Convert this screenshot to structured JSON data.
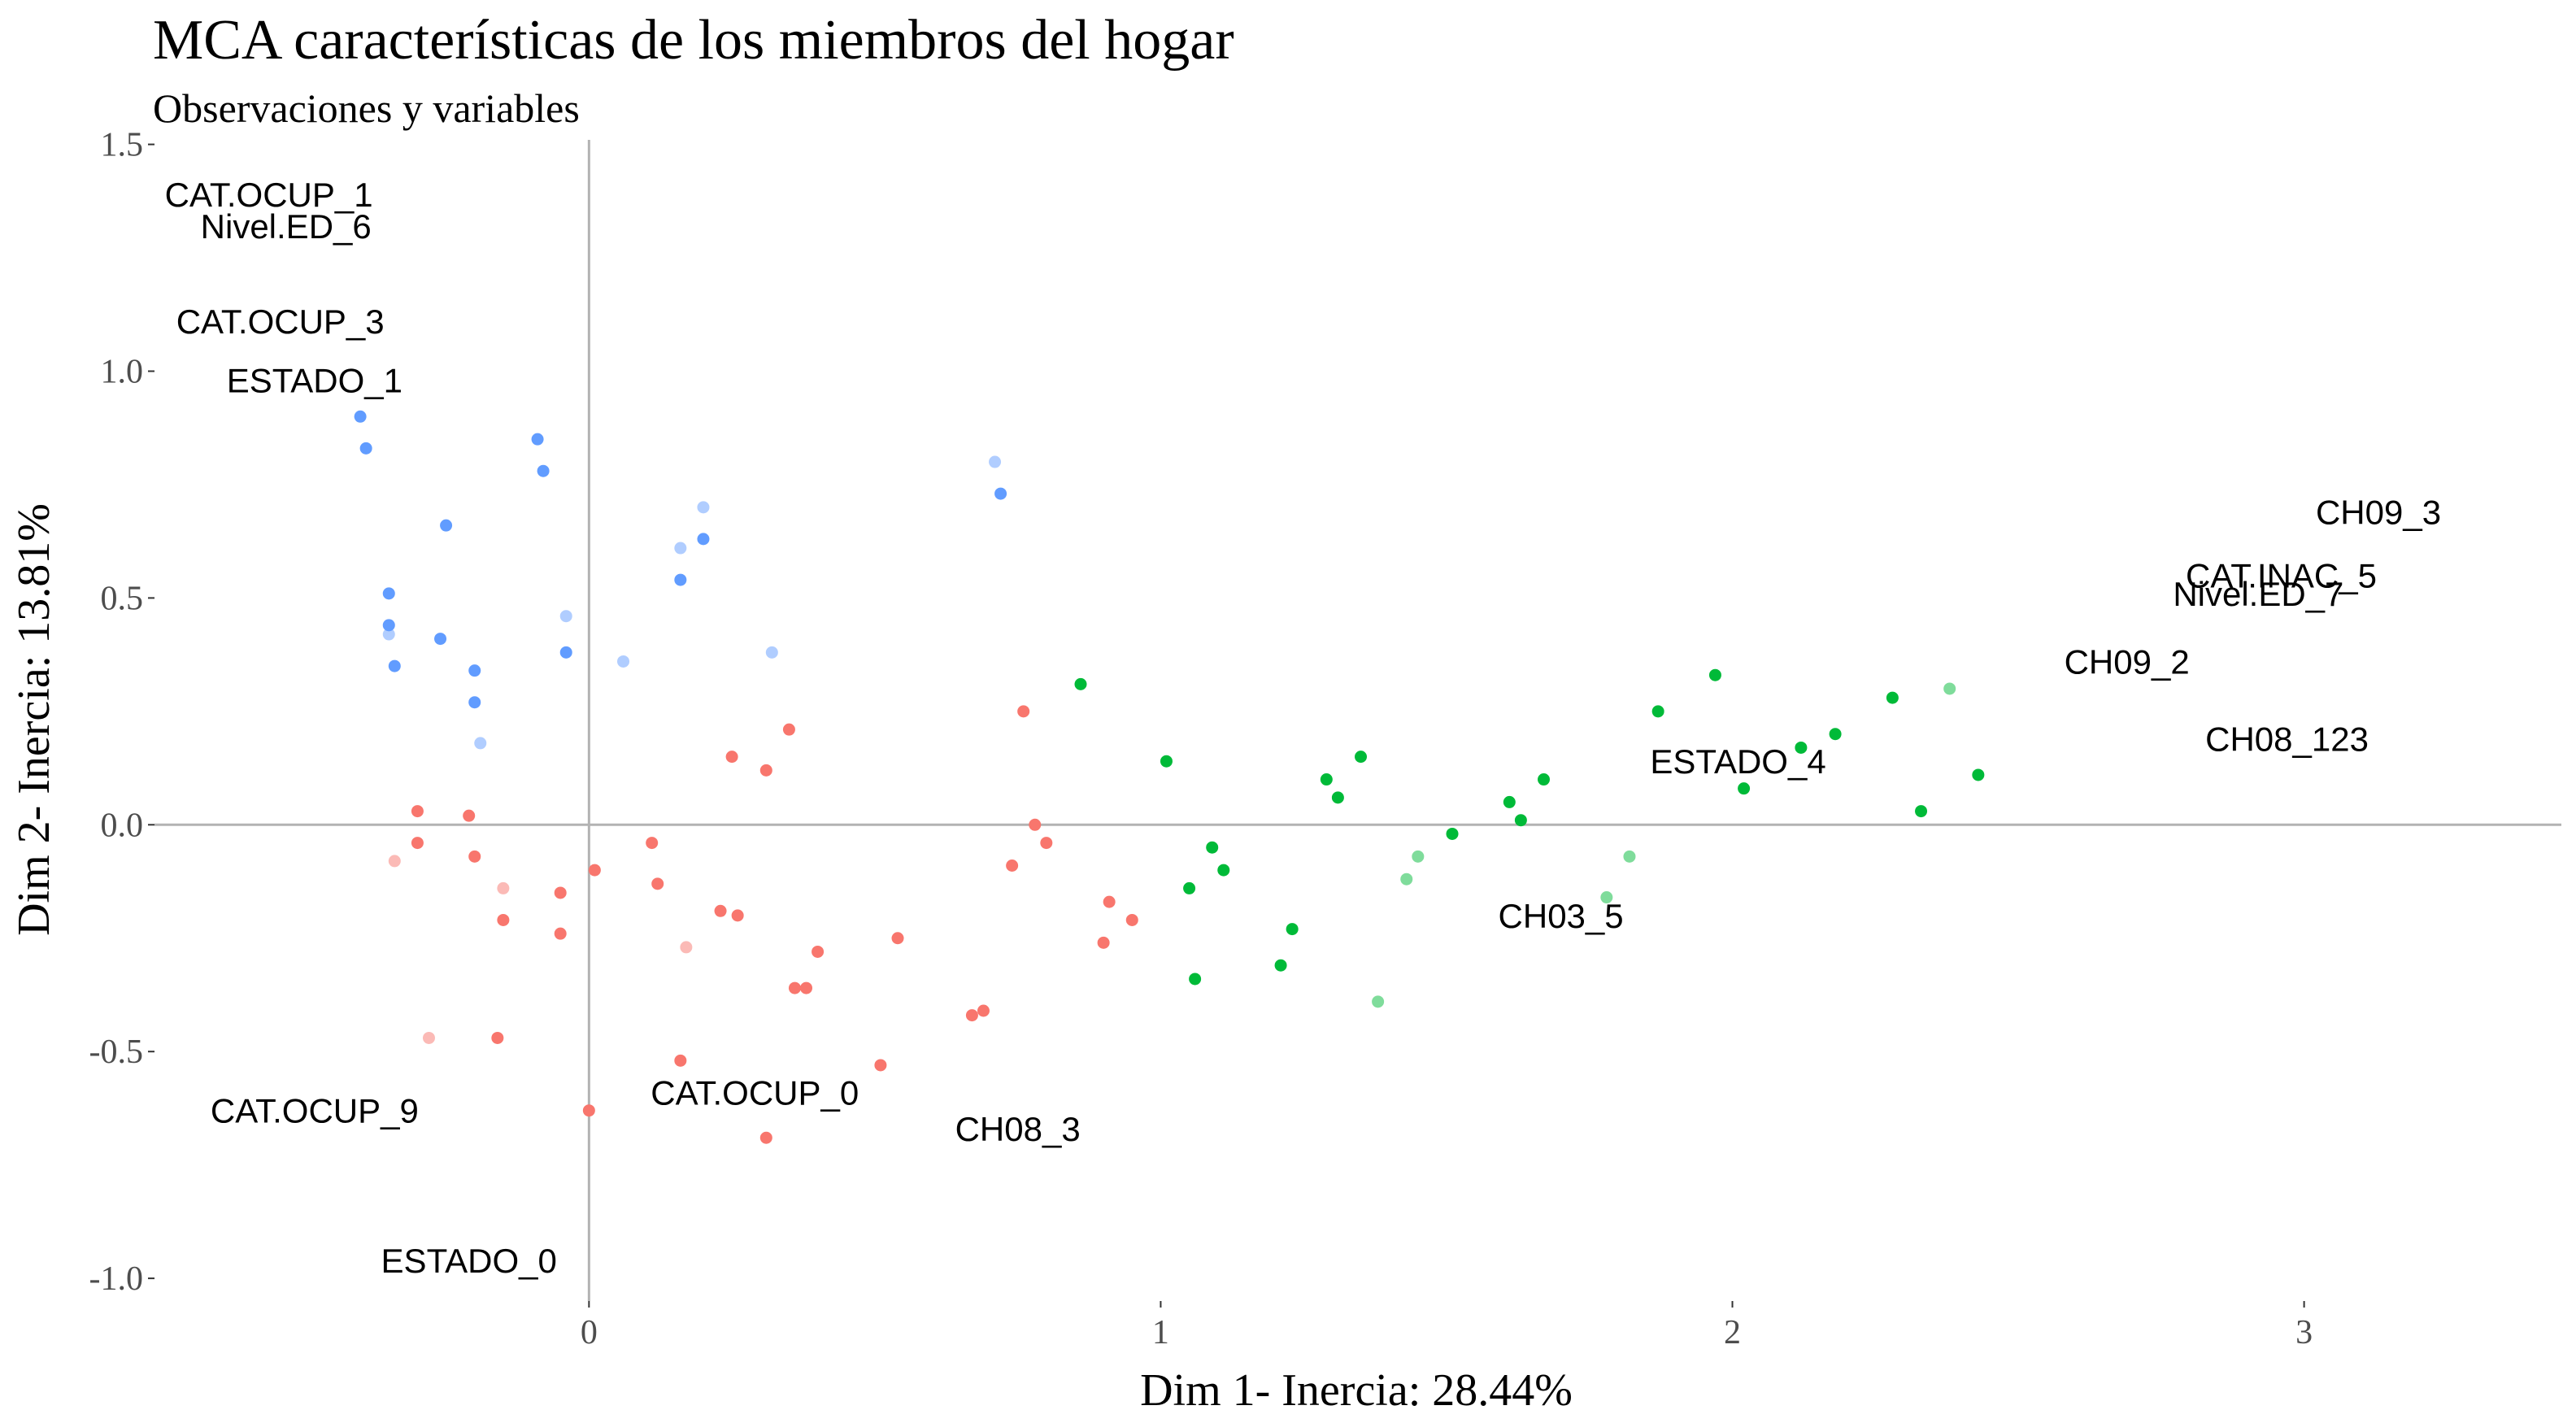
{
  "chart_data": {
    "type": "scatter",
    "title": "MCA características de los miembros del hogar",
    "subtitle": "Observaciones y variables",
    "xlabel": "Dim 1- Inercia: 28.44%",
    "ylabel": "Dim 2- Inercia: 13.81%",
    "xlim": [
      -0.76,
      3.45
    ],
    "ylim": [
      -1.05,
      1.51
    ],
    "x_ticks": [
      {
        "value": 0,
        "label": "0"
      },
      {
        "value": 1,
        "label": "1"
      },
      {
        "value": 2,
        "label": "2"
      },
      {
        "value": 3,
        "label": "3"
      }
    ],
    "y_ticks": [
      {
        "value": 1.5,
        "label": "1.5"
      },
      {
        "value": 1.0,
        "label": "1.0"
      },
      {
        "value": 0.5,
        "label": "0.5"
      },
      {
        "value": 0.0,
        "label": "0.0"
      },
      {
        "value": -0.5,
        "label": "-0.5"
      },
      {
        "value": -1.0,
        "label": "-1.0"
      }
    ],
    "grid": false,
    "reference_lines": {
      "x": 0,
      "y": 0
    },
    "legend": "none",
    "cluster_colors": {
      "1": "#F8766D",
      "2": "#00BA38",
      "3": "#619CFF"
    },
    "points": [
      {
        "x": -0.4,
        "y": 0.9,
        "cluster": 3,
        "alpha": 1
      },
      {
        "x": -0.39,
        "y": 0.83,
        "cluster": 3,
        "alpha": 1
      },
      {
        "x": -0.35,
        "y": 0.51,
        "cluster": 3,
        "alpha": 1
      },
      {
        "x": -0.35,
        "y": 0.44,
        "cluster": 3,
        "alpha": 1
      },
      {
        "x": -0.35,
        "y": 0.42,
        "cluster": 3,
        "alpha": 0.5
      },
      {
        "x": -0.34,
        "y": 0.35,
        "cluster": 3,
        "alpha": 1
      },
      {
        "x": -0.25,
        "y": 0.66,
        "cluster": 3,
        "alpha": 1
      },
      {
        "x": -0.26,
        "y": 0.41,
        "cluster": 3,
        "alpha": 1
      },
      {
        "x": -0.2,
        "y": 0.34,
        "cluster": 3,
        "alpha": 1
      },
      {
        "x": -0.2,
        "y": 0.27,
        "cluster": 3,
        "alpha": 1
      },
      {
        "x": -0.19,
        "y": 0.18,
        "cluster": 3,
        "alpha": 0.5
      },
      {
        "x": -0.09,
        "y": 0.85,
        "cluster": 3,
        "alpha": 1
      },
      {
        "x": -0.08,
        "y": 0.78,
        "cluster": 3,
        "alpha": 1
      },
      {
        "x": -0.04,
        "y": 0.46,
        "cluster": 3,
        "alpha": 0.5
      },
      {
        "x": -0.04,
        "y": 0.38,
        "cluster": 3,
        "alpha": 1
      },
      {
        "x": 0.06,
        "y": 0.36,
        "cluster": 3,
        "alpha": 0.5
      },
      {
        "x": 0.16,
        "y": 0.61,
        "cluster": 3,
        "alpha": 0.5
      },
      {
        "x": 0.16,
        "y": 0.54,
        "cluster": 3,
        "alpha": 1
      },
      {
        "x": 0.2,
        "y": 0.7,
        "cluster": 3,
        "alpha": 0.5
      },
      {
        "x": 0.2,
        "y": 0.63,
        "cluster": 3,
        "alpha": 1
      },
      {
        "x": 0.32,
        "y": 0.38,
        "cluster": 3,
        "alpha": 0.5
      },
      {
        "x": 0.71,
        "y": 0.8,
        "cluster": 3,
        "alpha": 0.5
      },
      {
        "x": 0.72,
        "y": 0.73,
        "cluster": 3,
        "alpha": 1
      },
      {
        "x": -0.3,
        "y": 0.03,
        "cluster": 1,
        "alpha": 1
      },
      {
        "x": -0.3,
        "y": -0.04,
        "cluster": 1,
        "alpha": 1
      },
      {
        "x": -0.34,
        "y": -0.08,
        "cluster": 1,
        "alpha": 0.5
      },
      {
        "x": -0.21,
        "y": 0.02,
        "cluster": 1,
        "alpha": 1
      },
      {
        "x": -0.2,
        "y": -0.07,
        "cluster": 1,
        "alpha": 1
      },
      {
        "x": -0.15,
        "y": -0.14,
        "cluster": 1,
        "alpha": 0.5
      },
      {
        "x": -0.15,
        "y": -0.21,
        "cluster": 1,
        "alpha": 1
      },
      {
        "x": -0.28,
        "y": -0.47,
        "cluster": 1,
        "alpha": 0.5
      },
      {
        "x": -0.16,
        "y": -0.47,
        "cluster": 1,
        "alpha": 1
      },
      {
        "x": -0.05,
        "y": -0.15,
        "cluster": 1,
        "alpha": 1
      },
      {
        "x": -0.05,
        "y": -0.24,
        "cluster": 1,
        "alpha": 1
      },
      {
        "x": 0.01,
        "y": -0.1,
        "cluster": 1,
        "alpha": 1
      },
      {
        "x": 0.0,
        "y": -0.63,
        "cluster": 1,
        "alpha": 1
      },
      {
        "x": 0.11,
        "y": -0.04,
        "cluster": 1,
        "alpha": 1
      },
      {
        "x": 0.12,
        "y": -0.13,
        "cluster": 1,
        "alpha": 1
      },
      {
        "x": 0.16,
        "y": -0.52,
        "cluster": 1,
        "alpha": 1
      },
      {
        "x": 0.17,
        "y": -0.27,
        "cluster": 1,
        "alpha": 0.5
      },
      {
        "x": 0.23,
        "y": -0.19,
        "cluster": 1,
        "alpha": 1
      },
      {
        "x": 0.26,
        "y": -0.2,
        "cluster": 1,
        "alpha": 1
      },
      {
        "x": 0.25,
        "y": 0.15,
        "cluster": 1,
        "alpha": 1
      },
      {
        "x": 0.31,
        "y": 0.12,
        "cluster": 1,
        "alpha": 1
      },
      {
        "x": 0.35,
        "y": 0.21,
        "cluster": 1,
        "alpha": 1
      },
      {
        "x": 0.31,
        "y": -0.69,
        "cluster": 1,
        "alpha": 1
      },
      {
        "x": 0.36,
        "y": -0.36,
        "cluster": 1,
        "alpha": 1
      },
      {
        "x": 0.38,
        "y": -0.36,
        "cluster": 1,
        "alpha": 1
      },
      {
        "x": 0.4,
        "y": -0.28,
        "cluster": 1,
        "alpha": 1
      },
      {
        "x": 0.51,
        "y": -0.53,
        "cluster": 1,
        "alpha": 1
      },
      {
        "x": 0.54,
        "y": -0.25,
        "cluster": 1,
        "alpha": 1
      },
      {
        "x": 0.67,
        "y": -0.42,
        "cluster": 1,
        "alpha": 1
      },
      {
        "x": 0.69,
        "y": -0.41,
        "cluster": 1,
        "alpha": 1
      },
      {
        "x": 0.74,
        "y": -0.09,
        "cluster": 1,
        "alpha": 1
      },
      {
        "x": 0.76,
        "y": 0.25,
        "cluster": 1,
        "alpha": 1
      },
      {
        "x": 0.78,
        "y": 0.0,
        "cluster": 1,
        "alpha": 1
      },
      {
        "x": 0.8,
        "y": -0.04,
        "cluster": 1,
        "alpha": 1
      },
      {
        "x": 0.9,
        "y": -0.26,
        "cluster": 1,
        "alpha": 1
      },
      {
        "x": 0.91,
        "y": -0.17,
        "cluster": 1,
        "alpha": 1
      },
      {
        "x": 0.95,
        "y": -0.21,
        "cluster": 1,
        "alpha": 1
      },
      {
        "x": 0.86,
        "y": 0.31,
        "cluster": 2,
        "alpha": 1
      },
      {
        "x": 1.01,
        "y": 0.14,
        "cluster": 2,
        "alpha": 1
      },
      {
        "x": 1.05,
        "y": -0.14,
        "cluster": 2,
        "alpha": 1
      },
      {
        "x": 1.06,
        "y": -0.34,
        "cluster": 2,
        "alpha": 1
      },
      {
        "x": 1.09,
        "y": -0.05,
        "cluster": 2,
        "alpha": 1
      },
      {
        "x": 1.11,
        "y": -0.1,
        "cluster": 2,
        "alpha": 1
      },
      {
        "x": 1.21,
        "y": -0.31,
        "cluster": 2,
        "alpha": 1
      },
      {
        "x": 1.23,
        "y": -0.23,
        "cluster": 2,
        "alpha": 1
      },
      {
        "x": 1.29,
        "y": 0.1,
        "cluster": 2,
        "alpha": 1
      },
      {
        "x": 1.31,
        "y": 0.06,
        "cluster": 2,
        "alpha": 1
      },
      {
        "x": 1.35,
        "y": 0.15,
        "cluster": 2,
        "alpha": 1
      },
      {
        "x": 1.38,
        "y": -0.39,
        "cluster": 2,
        "alpha": 0.5
      },
      {
        "x": 1.43,
        "y": -0.12,
        "cluster": 2,
        "alpha": 0.5
      },
      {
        "x": 1.45,
        "y": -0.07,
        "cluster": 2,
        "alpha": 0.5
      },
      {
        "x": 1.51,
        "y": -0.02,
        "cluster": 2,
        "alpha": 1
      },
      {
        "x": 1.61,
        "y": 0.05,
        "cluster": 2,
        "alpha": 1
      },
      {
        "x": 1.63,
        "y": 0.01,
        "cluster": 2,
        "alpha": 1
      },
      {
        "x": 1.67,
        "y": 0.1,
        "cluster": 2,
        "alpha": 1
      },
      {
        "x": 1.78,
        "y": -0.16,
        "cluster": 2,
        "alpha": 0.5
      },
      {
        "x": 1.82,
        "y": -0.07,
        "cluster": 2,
        "alpha": 0.5
      },
      {
        "x": 1.87,
        "y": 0.25,
        "cluster": 2,
        "alpha": 1
      },
      {
        "x": 1.97,
        "y": 0.33,
        "cluster": 2,
        "alpha": 1
      },
      {
        "x": 2.02,
        "y": 0.08,
        "cluster": 2,
        "alpha": 1
      },
      {
        "x": 2.12,
        "y": 0.17,
        "cluster": 2,
        "alpha": 1
      },
      {
        "x": 2.18,
        "y": 0.2,
        "cluster": 2,
        "alpha": 1
      },
      {
        "x": 2.28,
        "y": 0.28,
        "cluster": 2,
        "alpha": 1
      },
      {
        "x": 2.33,
        "y": 0.03,
        "cluster": 2,
        "alpha": 1
      },
      {
        "x": 2.38,
        "y": 0.3,
        "cluster": 2,
        "alpha": 0.5
      },
      {
        "x": 2.43,
        "y": 0.11,
        "cluster": 2,
        "alpha": 1
      }
    ],
    "variable_labels": [
      {
        "text": "CAT.OCUP_1",
        "x": -0.56,
        "y": 1.39
      },
      {
        "text": "Nivel.ED_6",
        "x": -0.53,
        "y": 1.32
      },
      {
        "text": "CAT.OCUP_3",
        "x": -0.54,
        "y": 1.11
      },
      {
        "text": "ESTADO_1",
        "x": -0.48,
        "y": 0.98
      },
      {
        "text": "CH09_3",
        "x": 3.13,
        "y": 0.69
      },
      {
        "text": "CAT.INAC_5",
        "x": 2.96,
        "y": 0.55
      },
      {
        "text": "Nivel.ED_7",
        "x": 2.92,
        "y": 0.51
      },
      {
        "text": "CH09_2",
        "x": 2.69,
        "y": 0.36
      },
      {
        "text": "CH08_123",
        "x": 2.97,
        "y": 0.19
      },
      {
        "text": "ESTADO_4",
        "x": 2.01,
        "y": 0.14
      },
      {
        "text": "CH03_5",
        "x": 1.7,
        "y": -0.2
      },
      {
        "text": "CAT.OCUP_9",
        "x": -0.48,
        "y": -0.63
      },
      {
        "text": "CAT.OCUP_0",
        "x": 0.29,
        "y": -0.59
      },
      {
        "text": "CH08_3",
        "x": 0.75,
        "y": -0.67
      },
      {
        "text": "ESTADO_0",
        "x": -0.21,
        "y": -0.96
      }
    ]
  }
}
